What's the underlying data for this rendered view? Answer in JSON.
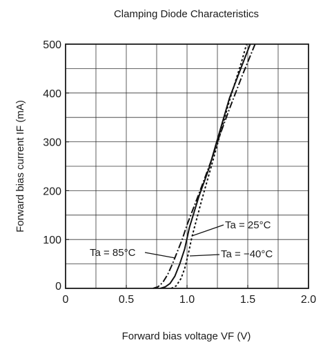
{
  "chart_data": {
    "type": "line",
    "title": "Clamping Diode Characteristics",
    "xlabel": "Forward bias voltage  VF (V)",
    "ylabel": "Forward bias current  IF (mA)",
    "xlim": [
      0,
      2.0
    ],
    "ylim": [
      0,
      500
    ],
    "x_ticks": [
      "0",
      "0.5",
      "1.0",
      "1.5",
      "2.0"
    ],
    "y_ticks": [
      "0",
      "100",
      "200",
      "300",
      "400",
      "500"
    ],
    "grid": true,
    "series": [
      {
        "name": "Ta = 25°C",
        "style": "solid",
        "points": [
          [
            0.78,
            0
          ],
          [
            0.82,
            3
          ],
          [
            0.86,
            10
          ],
          [
            0.9,
            25
          ],
          [
            0.94,
            50
          ],
          [
            0.98,
            80
          ],
          [
            1.02,
            125
          ],
          [
            1.1,
            190
          ],
          [
            1.18,
            245
          ],
          [
            1.25,
            305
          ],
          [
            1.35,
            390
          ],
          [
            1.45,
            455
          ],
          [
            1.52,
            500
          ]
        ]
      },
      {
        "name": "Ta = 85°C",
        "style": "dash-dot",
        "points": [
          [
            0.72,
            0
          ],
          [
            0.76,
            3
          ],
          [
            0.8,
            12
          ],
          [
            0.84,
            28
          ],
          [
            0.88,
            50
          ],
          [
            0.92,
            75
          ],
          [
            0.96,
            100
          ],
          [
            1.0,
            130
          ],
          [
            1.1,
            195
          ],
          [
            1.2,
            262
          ],
          [
            1.25,
            300
          ],
          [
            1.35,
            368
          ],
          [
            1.45,
            433
          ],
          [
            1.56,
            500
          ]
        ]
      },
      {
        "name": "Ta = −40°C",
        "style": "dotted",
        "points": [
          [
            0.87,
            0
          ],
          [
            0.91,
            5
          ],
          [
            0.95,
            20
          ],
          [
            0.98,
            40
          ],
          [
            1.01,
            70
          ],
          [
            1.04,
            105
          ],
          [
            1.12,
            180
          ],
          [
            1.2,
            250
          ],
          [
            1.25,
            295
          ],
          [
            1.35,
            385
          ],
          [
            1.45,
            465
          ],
          [
            1.49,
            500
          ]
        ]
      }
    ],
    "annotations": [
      {
        "text": "Ta = 25°C"
      },
      {
        "text": "Ta = 85°C"
      },
      {
        "text": "Ta = −40°C"
      }
    ]
  }
}
